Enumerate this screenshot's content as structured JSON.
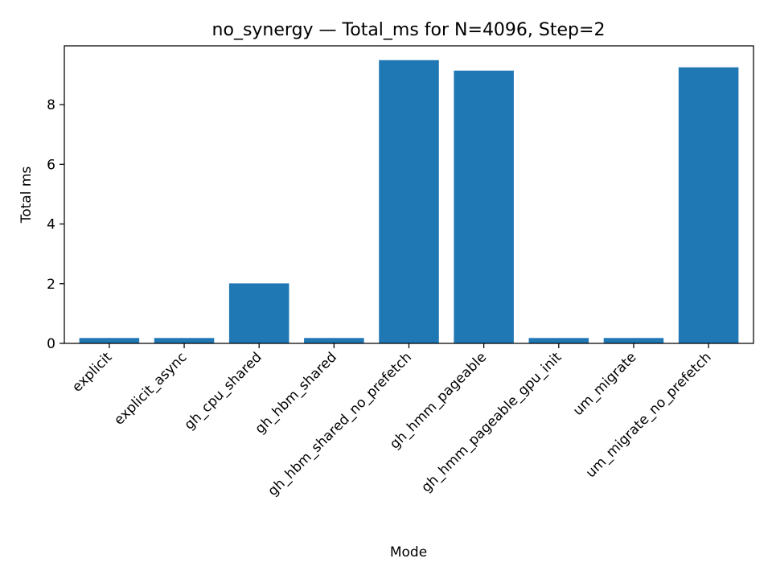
{
  "chart_data": {
    "type": "bar",
    "title": "no_synergy — Total_ms for N=4096, Step=2",
    "xlabel": "Mode",
    "ylabel": "Total ms",
    "categories": [
      "explicit",
      "explicit_async",
      "gh_cpu_shared",
      "gh_hbm_shared",
      "gh_hbm_shared_no_prefetch",
      "gh_hmm_pageable",
      "gh_hmm_pageable_gpu_init",
      "um_migrate",
      "um_migrate_no_prefetch"
    ],
    "values": [
      0.18,
      0.18,
      2.01,
      0.18,
      9.49,
      9.14,
      0.18,
      0.18,
      9.25
    ],
    "ylim": [
      0,
      9.97
    ],
    "yticks": [
      0,
      2,
      4,
      6,
      8
    ],
    "ytick_labels": [
      "0",
      "2",
      "4",
      "6",
      "8"
    ],
    "bar_color": "#1f77b4",
    "grid": false,
    "legend": "none"
  }
}
